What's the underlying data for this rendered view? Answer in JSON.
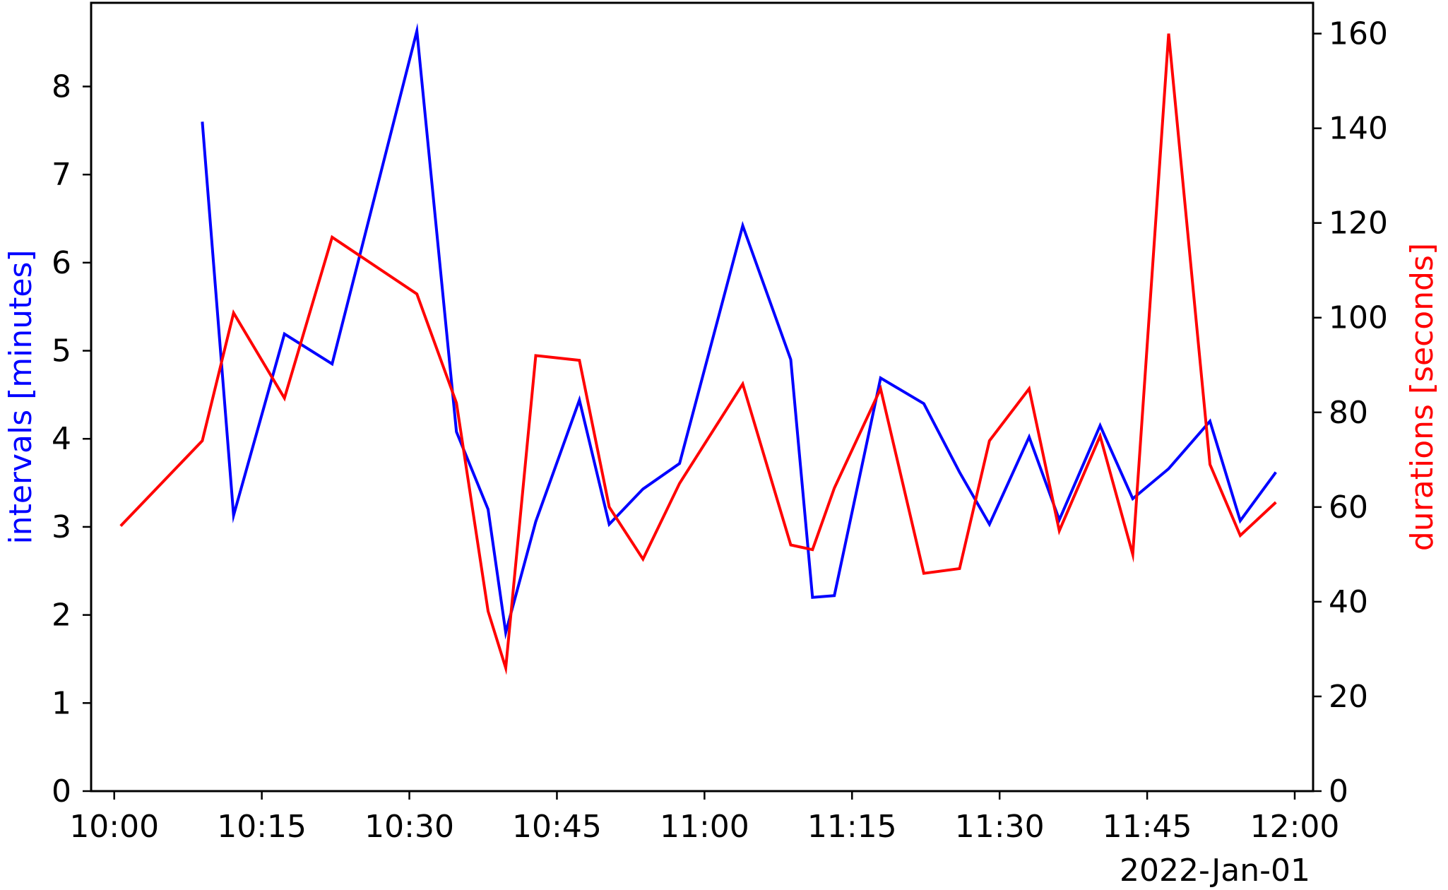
{
  "chart_data": {
    "type": "line",
    "date_label": "2022-Jan-01",
    "x_ticks": [
      "10:00",
      "10:15",
      "10:30",
      "10:45",
      "11:00",
      "11:15",
      "11:30",
      "11:45",
      "12:00"
    ],
    "xlim": [
      "09:57:39",
      "12:01:52"
    ],
    "y_left": {
      "label": "intervals [minutes]",
      "color": "#0000ff",
      "ylim": [
        0,
        8.95
      ],
      "ticks": [
        "0",
        "1",
        "2",
        "3",
        "4",
        "5",
        "6",
        "7",
        "8"
      ]
    },
    "y_right": {
      "label": "durations [seconds]",
      "color": "#ff0000",
      "ylim": [
        0,
        166.5
      ],
      "ticks": [
        "0",
        "20",
        "40",
        "60",
        "80",
        "100",
        "120",
        "140",
        "160"
      ]
    },
    "series": [
      {
        "axis": "left",
        "color": "#0000ff",
        "x": [
          "10:08:57",
          "10:12:08",
          "10:17:18",
          "10:22:09",
          "10:30:46",
          "10:34:47",
          "10:38:00",
          "10:39:48",
          "10:42:51",
          "10:47:17",
          "10:50:19",
          "10:53:45",
          "10:57:28",
          "11:03:53",
          "11:08:46",
          "11:10:59",
          "11:13:12",
          "11:17:54",
          "11:22:18",
          "11:25:56",
          "11:28:58",
          "11:33:00",
          "11:36:04",
          "11:40:13",
          "11:43:32",
          "11:47:11",
          "11:51:23",
          "11:54:28",
          "11:58:05"
        ],
        "y": [
          7.6,
          3.13,
          5.19,
          4.85,
          8.63,
          4.08,
          3.2,
          1.8,
          3.06,
          4.44,
          3.03,
          3.43,
          3.72,
          6.42,
          4.9,
          2.2,
          2.22,
          4.69,
          4.4,
          3.62,
          3.03,
          4.02,
          3.08,
          4.15,
          3.32,
          3.66,
          4.2,
          3.07,
          3.62
        ]
      },
      {
        "axis": "right",
        "color": "#ff0000",
        "x": [
          "10:00:39",
          "10:08:57",
          "10:12:08",
          "10:17:18",
          "10:22:09",
          "10:30:46",
          "10:34:47",
          "10:38:00",
          "10:39:48",
          "10:42:51",
          "10:47:17",
          "10:50:19",
          "10:53:45",
          "10:57:28",
          "11:03:53",
          "11:08:46",
          "11:10:59",
          "11:13:12",
          "11:17:54",
          "11:22:18",
          "11:25:56",
          "11:28:58",
          "11:33:00",
          "11:36:04",
          "11:40:13",
          "11:43:32",
          "11:47:11",
          "11:51:23",
          "11:54:28",
          "11:58:05"
        ],
        "y": [
          56,
          74,
          101,
          83,
          117,
          105,
          82,
          38,
          26,
          92,
          91,
          60,
          49,
          65,
          86,
          52,
          51,
          64,
          85,
          46,
          47,
          74,
          85,
          55,
          75,
          50,
          160,
          69,
          54,
          61
        ]
      }
    ]
  }
}
